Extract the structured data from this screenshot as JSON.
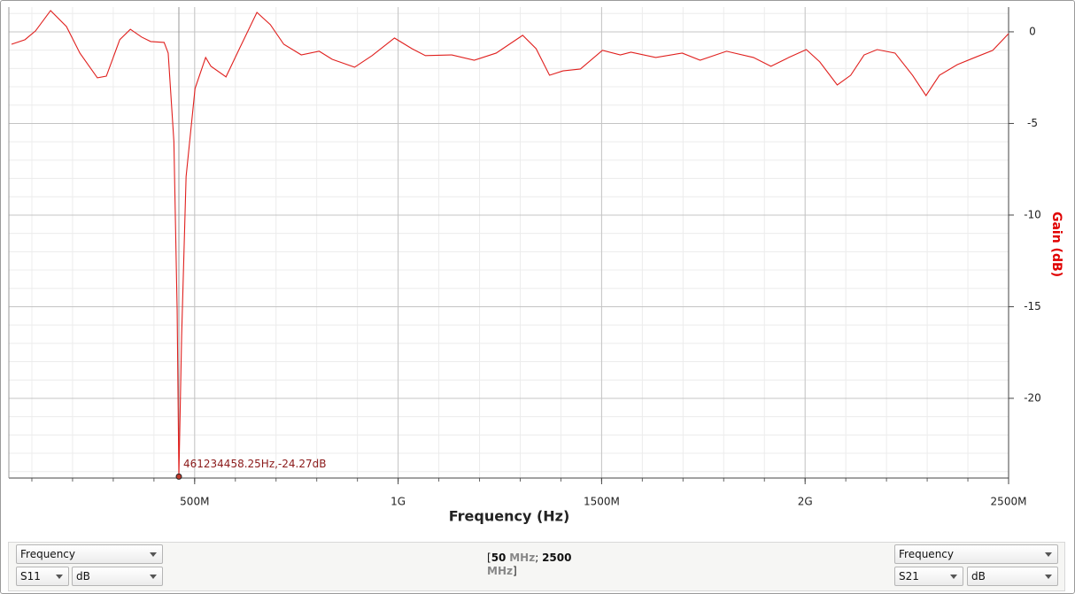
{
  "chart_data": {
    "type": "line",
    "xlabel": "Frequency (Hz)",
    "ylabel": "Gain (dB)",
    "xlim": [
      50,
      2500
    ],
    "ylim": [
      -24.35,
      1.35
    ],
    "xticks": [
      {
        "value": 500,
        "label": "500M"
      },
      {
        "value": 1000,
        "label": "1G"
      },
      {
        "value": 1500,
        "label": "1500M"
      },
      {
        "value": 2000,
        "label": "2G"
      },
      {
        "value": 2500,
        "label": "2500M"
      }
    ],
    "yticks": [
      0,
      -5,
      -10,
      -15,
      -20
    ],
    "grid": true,
    "x": [
      50,
      83,
      109,
      146,
      185,
      218,
      261,
      283,
      316,
      342,
      370,
      392,
      425,
      435,
      449,
      457,
      461.23445825,
      468,
      479,
      501,
      527,
      540,
      577,
      610,
      653,
      686,
      719,
      762,
      806,
      838,
      893,
      936,
      991,
      1034,
      1067,
      1132,
      1187,
      1241,
      1306,
      1339,
      1372,
      1405,
      1448,
      1502,
      1546,
      1572,
      1633,
      1698,
      1742,
      1807,
      1873,
      1916,
      1960,
      2003,
      2036,
      2079,
      2112,
      2145,
      2177,
      2221,
      2264,
      2297,
      2330,
      2374,
      2417,
      2461,
      2500
    ],
    "series": [
      {
        "name": "S21",
        "color": "#e0201e",
        "axis": "y",
        "values": [
          -0.68,
          -0.43,
          0.05,
          1.16,
          0.29,
          -1.16,
          -2.51,
          -2.42,
          -0.43,
          0.14,
          -0.29,
          -0.53,
          -0.58,
          -1.16,
          -5.99,
          -15.2,
          -24.27,
          -16.6,
          -7.9,
          -3.09,
          -1.4,
          -1.88,
          -2.46,
          -0.92,
          1.06,
          0.39,
          -0.68,
          -1.26,
          -1.06,
          -1.5,
          -1.93,
          -1.3,
          -0.34,
          -0.92,
          -1.3,
          -1.26,
          -1.55,
          -1.16,
          -0.19,
          -0.92,
          -2.37,
          -2.13,
          -2.03,
          -1.01,
          -1.26,
          -1.11,
          -1.4,
          -1.16,
          -1.55,
          -1.06,
          -1.4,
          -1.88,
          -1.4,
          -0.97,
          -1.64,
          -2.9,
          -2.37,
          -1.26,
          -0.97,
          -1.16,
          -2.37,
          -3.48,
          -2.37,
          -1.79,
          -1.4,
          -1.01,
          -0.1
        ]
      }
    ],
    "marker": {
      "x": 461.23445825,
      "y": -24.27,
      "label": "461234458.25Hz,-24.27dB"
    }
  },
  "controls": {
    "left": {
      "axis_select": "Frequency",
      "param_select": "S11",
      "unit_select": "dB"
    },
    "right": {
      "axis_select": "Frequency",
      "param_select": "S21",
      "unit_select": "dB"
    },
    "range": {
      "open": "[",
      "start": 50,
      "start_unit": "MHz",
      "separator": ";",
      "end": 2500,
      "end_unit": "MHz",
      "close": "]"
    }
  }
}
